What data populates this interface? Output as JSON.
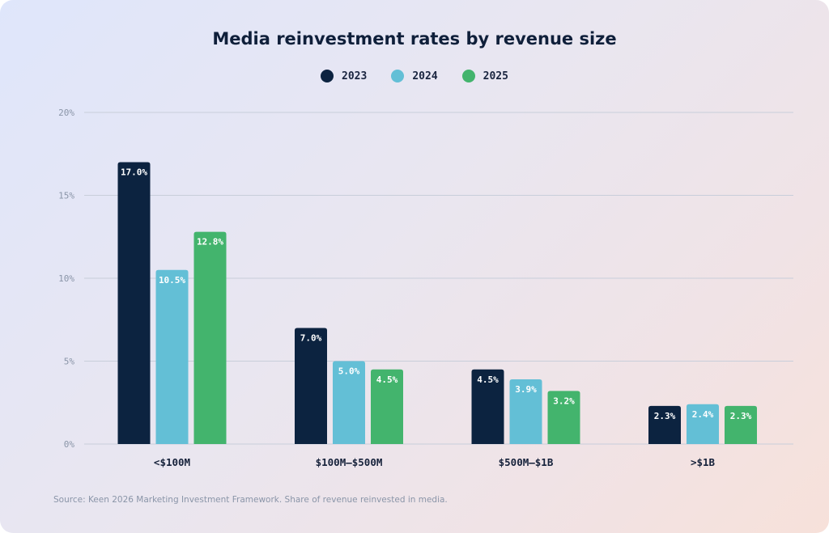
{
  "colors": {
    "series_2023": "#0c2340",
    "series_2024": "#63bfd6",
    "series_2025": "#43b46d",
    "grid": "#c8ceda",
    "tick_text": "#8a95a8",
    "category_text": "#15213a"
  },
  "chart_data": {
    "type": "bar",
    "title": "Media reinvestment rates by revenue size",
    "categories": [
      "<$100M",
      "$100M–$500M",
      "$500M–$1B",
      ">$1B"
    ],
    "series": [
      {
        "name": "2023",
        "values": [
          17.0,
          7.0,
          4.5,
          2.3
        ],
        "labels": [
          "17.0%",
          "7.0%",
          "4.5%",
          "2.3%"
        ]
      },
      {
        "name": "2024",
        "values": [
          10.5,
          5.0,
          3.9,
          2.4
        ],
        "labels": [
          "10.5%",
          "5.0%",
          "3.9%",
          "2.4%"
        ]
      },
      {
        "name": "2025",
        "values": [
          12.8,
          4.5,
          3.2,
          2.3
        ],
        "labels": [
          "12.8%",
          "4.5%",
          "3.2%",
          "2.3%"
        ]
      }
    ],
    "y_ticks": [
      {
        "value": 0,
        "label": "0%"
      },
      {
        "value": 5,
        "label": "5%"
      },
      {
        "value": 10,
        "label": "10%"
      },
      {
        "value": 15,
        "label": "15%"
      },
      {
        "value": 20,
        "label": "20%"
      }
    ],
    "ylim": [
      0,
      20
    ],
    "grid": true,
    "legend_position": "top-center",
    "xlabel": "",
    "ylabel": ""
  },
  "source": "Source: Keen 2026 Marketing Investment Framework. Share of revenue reinvested in media."
}
